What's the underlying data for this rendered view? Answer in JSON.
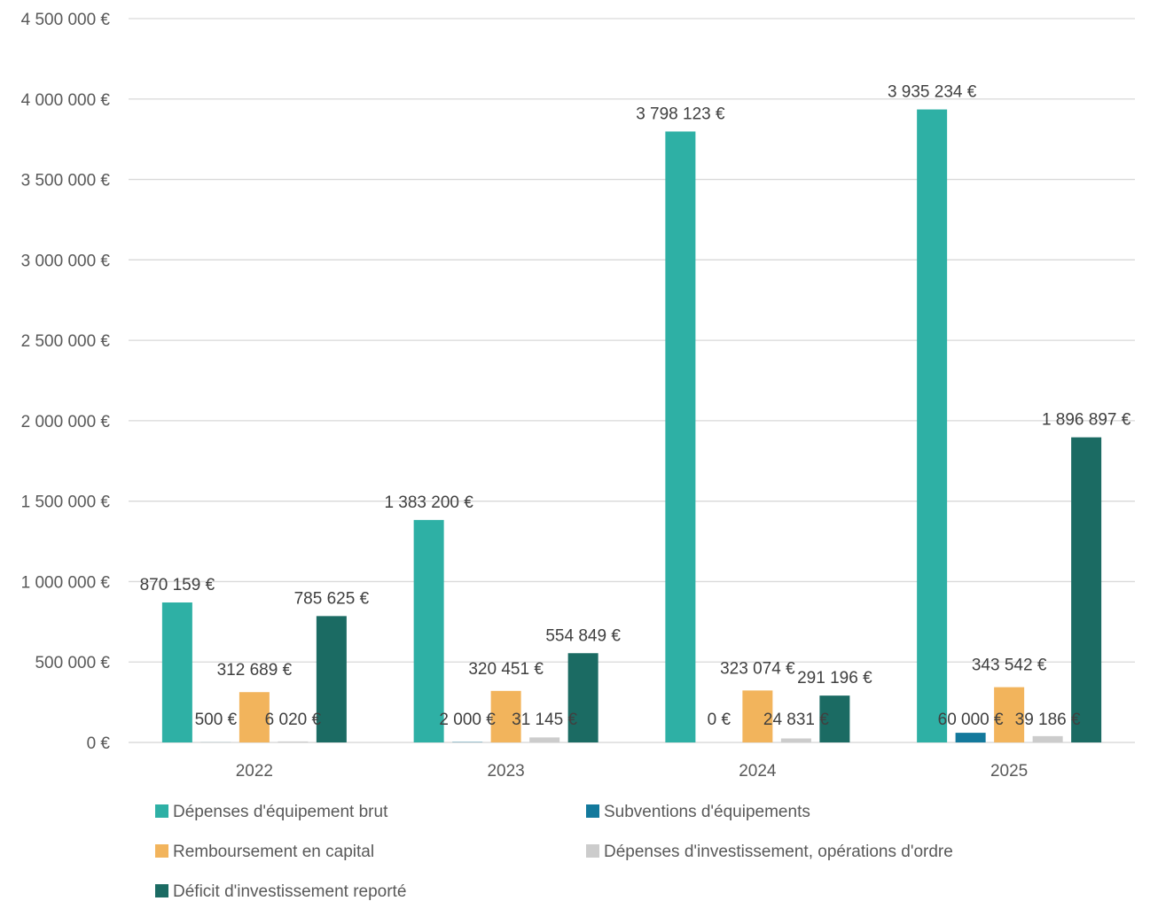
{
  "chart_data": {
    "type": "bar",
    "title": "",
    "xlabel": "",
    "ylabel": "",
    "categories": [
      "2022",
      "2023",
      "2024",
      "2025"
    ],
    "ylim": [
      0,
      4500000
    ],
    "y_ticks": [
      0,
      500000,
      1000000,
      1500000,
      2000000,
      2500000,
      3000000,
      3500000,
      4000000,
      4500000
    ],
    "y_tick_labels": [
      "0 €",
      "500 000 €",
      "1 000 000 €",
      "1 500 000 €",
      "2 000 000 €",
      "2 500 000 €",
      "3 000 000 €",
      "3 500 000 €",
      "4 000 000 €",
      "4 500 000 €"
    ],
    "grid": true,
    "legend_position": "bottom",
    "series": [
      {
        "name": "Dépenses d'équipement brut",
        "color": "#2EB0A5",
        "values": [
          870159,
          1383200,
          3798123,
          3935234
        ],
        "labels": [
          "870 159 €",
          "1 383 200 €",
          "3 798 123 €",
          "3 935 234 €"
        ]
      },
      {
        "name": "Subventions d'équipements",
        "color": "#13799C",
        "values": [
          500,
          2000,
          0,
          60000
        ],
        "labels": [
          "500 €",
          "2 000 €",
          "0 €",
          "60 000 €"
        ]
      },
      {
        "name": "Remboursement en capital",
        "color": "#F2B45C",
        "values": [
          312689,
          320451,
          323074,
          343542
        ],
        "labels": [
          "312 689 €",
          "320 451 €",
          "323 074 €",
          "343 542 €"
        ]
      },
      {
        "name": "Dépenses d'investissement, opérations d'ordre",
        "color": "#CCCCCC",
        "values": [
          6020,
          31145,
          24831,
          39186
        ],
        "labels": [
          "6 020 €",
          "31 145 €",
          "24 831 €",
          "39 186 €"
        ]
      },
      {
        "name": "Déficit d'investissement reporté",
        "color": "#1B6B63",
        "values": [
          785625,
          554849,
          291196,
          1896897
        ],
        "labels": [
          "785 625 €",
          "554 849 €",
          "291 196 €",
          "1 896 897 €"
        ]
      }
    ]
  }
}
